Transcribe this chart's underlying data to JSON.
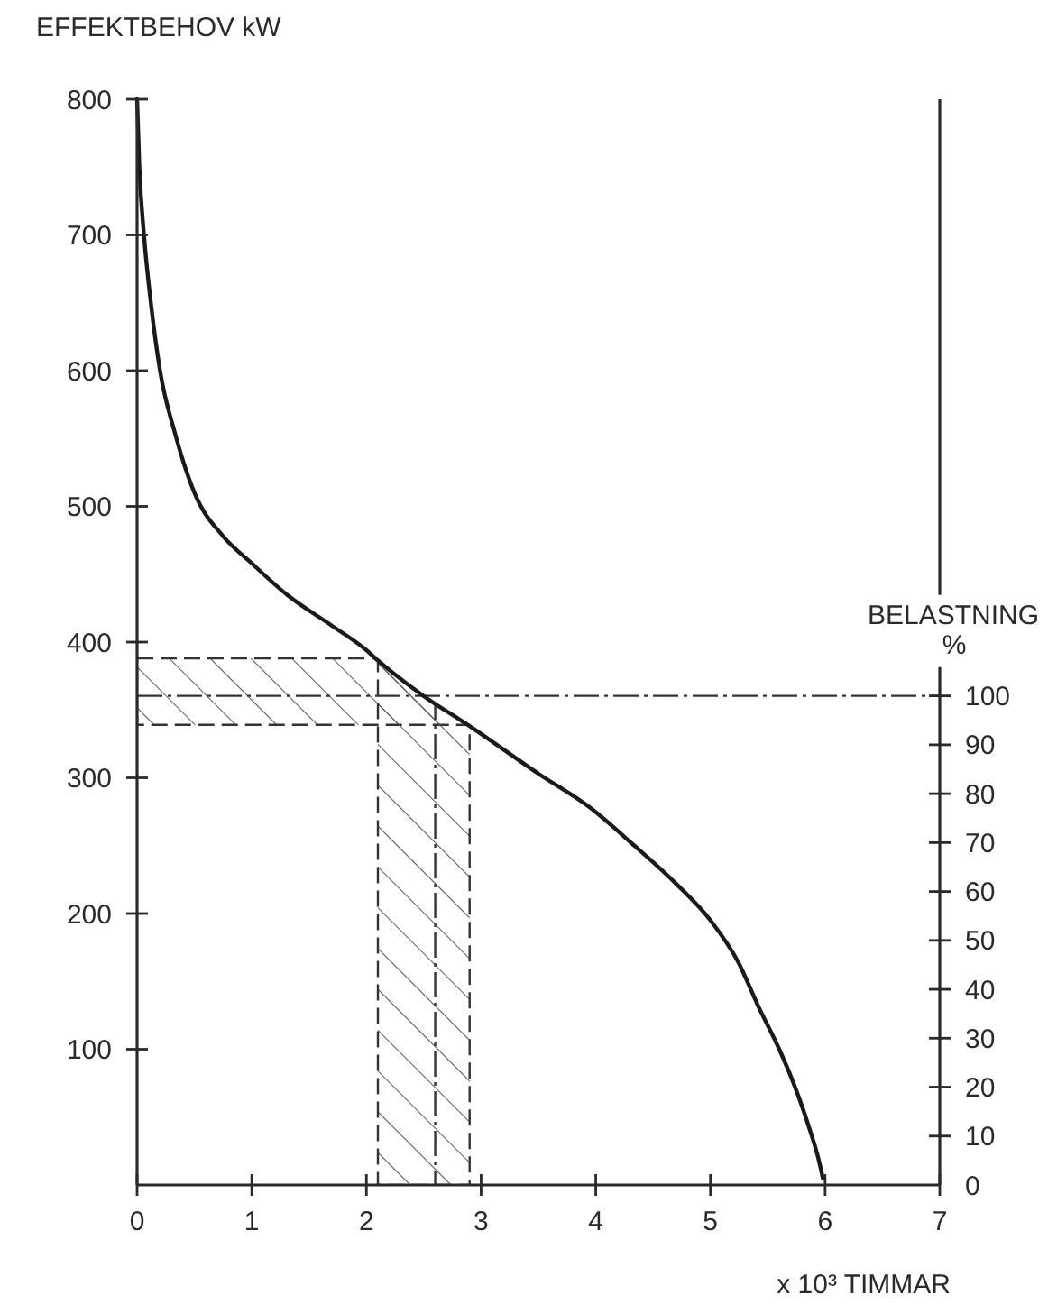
{
  "chart_data": {
    "type": "line",
    "ylabel": "EFFEKTBEHOV kW",
    "xlabel": "x 10³ TIMMAR",
    "y2label": "BELASTNING %",
    "xlim": [
      0,
      7
    ],
    "xticks": [
      0,
      1,
      2,
      3,
      4,
      5,
      6,
      7
    ],
    "ylim": [
      0,
      800
    ],
    "yticks": [
      100,
      200,
      300,
      400,
      500,
      600,
      700,
      800
    ],
    "y2lim": [
      0,
      222
    ],
    "y2ticks": [
      0,
      10,
      20,
      30,
      40,
      50,
      60,
      70,
      80,
      90,
      100
    ],
    "grid": false,
    "marker": "none",
    "line_style": "solid",
    "series": [
      {
        "color": "#1a1a1a",
        "x": [
          0,
          0.02,
          0.06,
          0.12,
          0.2,
          0.33,
          0.5,
          0.75,
          1.0,
          1.32,
          1.7,
          2.0,
          2.08,
          2.47,
          2.92,
          3.5,
          3.95,
          4.31,
          4.7,
          5.0,
          5.25,
          5.41,
          5.6,
          5.72,
          5.85,
          5.96,
          5.98
        ],
        "values": [
          800,
          750,
          700,
          650,
          600,
          554,
          510,
          478,
          458,
          434,
          412,
          394,
          388,
          362,
          337,
          303,
          278,
          252,
          222,
          195,
          163,
          133,
          100,
          76,
          45,
          13,
          5
        ]
      }
    ],
    "bands": [
      {
        "axis": "y",
        "from": 339,
        "to": 388,
        "color": "#333333"
      },
      {
        "axis": "x",
        "from": 2.1,
        "to": 2.9,
        "color": "#333333"
      }
    ],
    "ref_lines": [
      {
        "axis": "y2",
        "value": 100,
        "color": "#333333",
        "line_style": "dashdot"
      },
      {
        "axis": "x",
        "value": 2.6,
        "color": "#333333",
        "line_style": "dashdot"
      }
    ]
  }
}
